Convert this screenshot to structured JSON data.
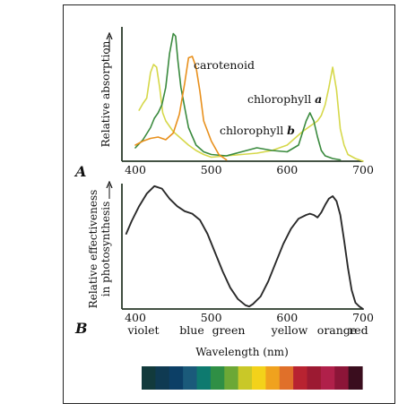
{
  "chart_data": [
    {
      "panel": "A",
      "type": "line",
      "ylabel": "Relative absorption",
      "xlim": [
        380,
        710
      ],
      "xticks": [
        400,
        500,
        600,
        700
      ],
      "series": [
        {
          "name": "chlorophyll a",
          "color": "#d6d84a",
          "x": [
            405,
            410,
            415,
            420,
            424,
            428,
            432,
            436,
            440,
            445,
            450,
            460,
            470,
            480,
            490,
            500,
            520,
            540,
            560,
            580,
            600,
            610,
            620,
            630,
            640,
            645,
            650,
            655,
            660,
            665,
            670,
            675,
            680,
            690,
            700
          ],
          "y": [
            0.38,
            0.43,
            0.47,
            0.66,
            0.72,
            0.7,
            0.55,
            0.36,
            0.3,
            0.26,
            0.22,
            0.17,
            0.12,
            0.08,
            0.05,
            0.03,
            0.04,
            0.05,
            0.06,
            0.08,
            0.12,
            0.17,
            0.22,
            0.26,
            0.3,
            0.34,
            0.42,
            0.55,
            0.7,
            0.53,
            0.24,
            0.12,
            0.05,
            0.02,
            0.0
          ]
        },
        {
          "name": "chlorophyll b",
          "color": "#3a8a3e",
          "x": [
            400,
            410,
            420,
            425,
            430,
            435,
            440,
            445,
            450,
            453,
            456,
            460,
            465,
            470,
            480,
            490,
            500,
            520,
            540,
            560,
            580,
            600,
            615,
            625,
            630,
            635,
            640,
            645,
            650,
            660,
            670
          ],
          "y": [
            0.1,
            0.16,
            0.25,
            0.32,
            0.36,
            0.42,
            0.55,
            0.8,
            0.95,
            0.93,
            0.75,
            0.55,
            0.4,
            0.25,
            0.12,
            0.07,
            0.05,
            0.04,
            0.07,
            0.1,
            0.08,
            0.07,
            0.12,
            0.3,
            0.36,
            0.3,
            0.18,
            0.08,
            0.04,
            0.02,
            0.01
          ]
        },
        {
          "name": "carotenoid",
          "color": "#e8901c",
          "x": [
            400,
            410,
            420,
            430,
            440,
            450,
            458,
            465,
            470,
            475,
            480,
            485,
            490,
            500,
            510,
            520
          ],
          "y": [
            0.12,
            0.15,
            0.17,
            0.18,
            0.16,
            0.21,
            0.35,
            0.58,
            0.77,
            0.78,
            0.7,
            0.52,
            0.3,
            0.15,
            0.05,
            0.01
          ]
        }
      ],
      "annotations": [
        "carotenoid",
        "chlorophyll a",
        "chlorophyll b"
      ]
    },
    {
      "panel": "B",
      "type": "line",
      "ylabel": "Relative effectiveness in photosynthesis",
      "xlabel": "Wavelength (nm)",
      "xlim": [
        380,
        710
      ],
      "xticks": [
        400,
        500,
        600,
        700
      ],
      "color_words": [
        "violet",
        "blue",
        "green",
        "yellow",
        "orange",
        "red"
      ],
      "series": [
        {
          "name": "",
          "color": "#2a2a2a",
          "x": [
            388,
            395,
            405,
            415,
            425,
            435,
            445,
            455,
            465,
            475,
            485,
            495,
            505,
            515,
            525,
            535,
            545,
            550,
            555,
            565,
            575,
            585,
            595,
            605,
            615,
            625,
            630,
            635,
            640,
            645,
            650,
            655,
            660,
            665,
            670,
            675,
            680,
            685,
            690,
            695,
            700
          ],
          "y": [
            0.6,
            0.7,
            0.82,
            0.92,
            0.98,
            0.96,
            0.88,
            0.82,
            0.78,
            0.76,
            0.71,
            0.6,
            0.45,
            0.3,
            0.17,
            0.08,
            0.03,
            0.02,
            0.04,
            0.1,
            0.22,
            0.37,
            0.52,
            0.64,
            0.72,
            0.75,
            0.76,
            0.75,
            0.73,
            0.77,
            0.83,
            0.88,
            0.9,
            0.86,
            0.75,
            0.55,
            0.33,
            0.15,
            0.05,
            0.02,
            0.0
          ]
        }
      ]
    }
  ],
  "spectrum_colors": [
    "#123a3c",
    "#0f3a52",
    "#0c3f66",
    "#1a5a7a",
    "#0e7a6f",
    "#2f8f45",
    "#6ca836",
    "#c9c828",
    "#f3d21a",
    "#f0a21e",
    "#e0702a",
    "#b82331",
    "#9c1a32",
    "#b0204a",
    "#8c1538",
    "#3a0d1e"
  ]
}
